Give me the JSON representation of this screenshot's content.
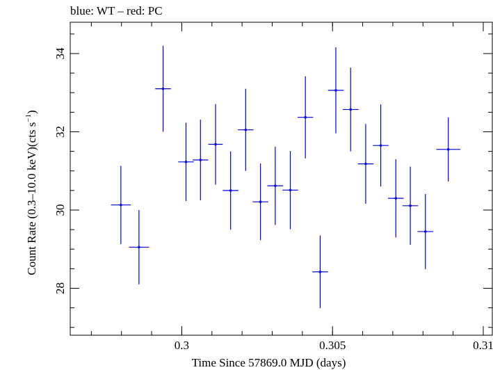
{
  "subtitle": "blue: WT – red: PC",
  "chart_data": {
    "type": "scatter",
    "title": "",
    "xlabel": "Time Since 57869.0 MJD (days)",
    "ylabel_main": "Count Rate (0.3–10.0 keV)(cts s",
    "ylabel_sup": "−1",
    "ylabel_close": ")",
    "xlim": [
      0.2963,
      0.3103
    ],
    "ylim": [
      26.8,
      34.8
    ],
    "x_ticks": [
      {
        "value": 0.3,
        "label": "0.3"
      },
      {
        "value": 0.305,
        "label": "0.305"
      },
      {
        "value": 0.31,
        "label": "0.31"
      }
    ],
    "x_minor_step": 0.001,
    "y_ticks": [
      {
        "value": 28,
        "label": "28"
      },
      {
        "value": 30,
        "label": "30"
      },
      {
        "value": 32,
        "label": "32"
      },
      {
        "value": 34,
        "label": "34"
      }
    ],
    "y_minor_step": 0.5,
    "grid": false,
    "series": [
      {
        "name": "WT",
        "color": "#0000dd",
        "points": [
          {
            "x": 0.29798,
            "xerr": 0.00033,
            "y": 30.13,
            "yerr": 1.0
          },
          {
            "x": 0.29858,
            "xerr": 0.00033,
            "y": 29.05,
            "yerr": 0.95
          },
          {
            "x": 0.29938,
            "xerr": 0.00026,
            "y": 33.1,
            "yerr": 1.1
          },
          {
            "x": 0.30014,
            "xerr": 0.00026,
            "y": 31.23,
            "yerr": 1.0
          },
          {
            "x": 0.30062,
            "xerr": 0.00026,
            "y": 31.28,
            "yerr": 1.03
          },
          {
            "x": 0.30112,
            "xerr": 0.00024,
            "y": 31.68,
            "yerr": 1.03
          },
          {
            "x": 0.30162,
            "xerr": 0.00026,
            "y": 30.5,
            "yerr": 1.0
          },
          {
            "x": 0.30212,
            "xerr": 0.00026,
            "y": 32.05,
            "yerr": 1.05
          },
          {
            "x": 0.30261,
            "xerr": 0.00026,
            "y": 30.21,
            "yerr": 0.98
          },
          {
            "x": 0.3031,
            "xerr": 0.00026,
            "y": 30.62,
            "yerr": 1.0
          },
          {
            "x": 0.3036,
            "xerr": 0.00026,
            "y": 30.51,
            "yerr": 1.0
          },
          {
            "x": 0.3041,
            "xerr": 0.00026,
            "y": 32.37,
            "yerr": 1.05
          },
          {
            "x": 0.30459,
            "xerr": 0.00026,
            "y": 28.42,
            "yerr": 0.93
          },
          {
            "x": 0.30511,
            "xerr": 0.00026,
            "y": 33.06,
            "yerr": 1.1
          },
          {
            "x": 0.3056,
            "xerr": 0.00026,
            "y": 32.57,
            "yerr": 1.07
          },
          {
            "x": 0.3061,
            "xerr": 0.00026,
            "y": 31.18,
            "yerr": 1.02
          },
          {
            "x": 0.3066,
            "xerr": 0.00026,
            "y": 31.65,
            "yerr": 1.05
          },
          {
            "x": 0.3071,
            "xerr": 0.00026,
            "y": 30.3,
            "yerr": 1.0
          },
          {
            "x": 0.30758,
            "xerr": 0.00026,
            "y": 30.11,
            "yerr": 1.0
          },
          {
            "x": 0.30808,
            "xerr": 0.00026,
            "y": 29.45,
            "yerr": 0.96
          },
          {
            "x": 0.30884,
            "xerr": 0.0004,
            "y": 31.55,
            "yerr": 0.82
          }
        ]
      }
    ]
  }
}
